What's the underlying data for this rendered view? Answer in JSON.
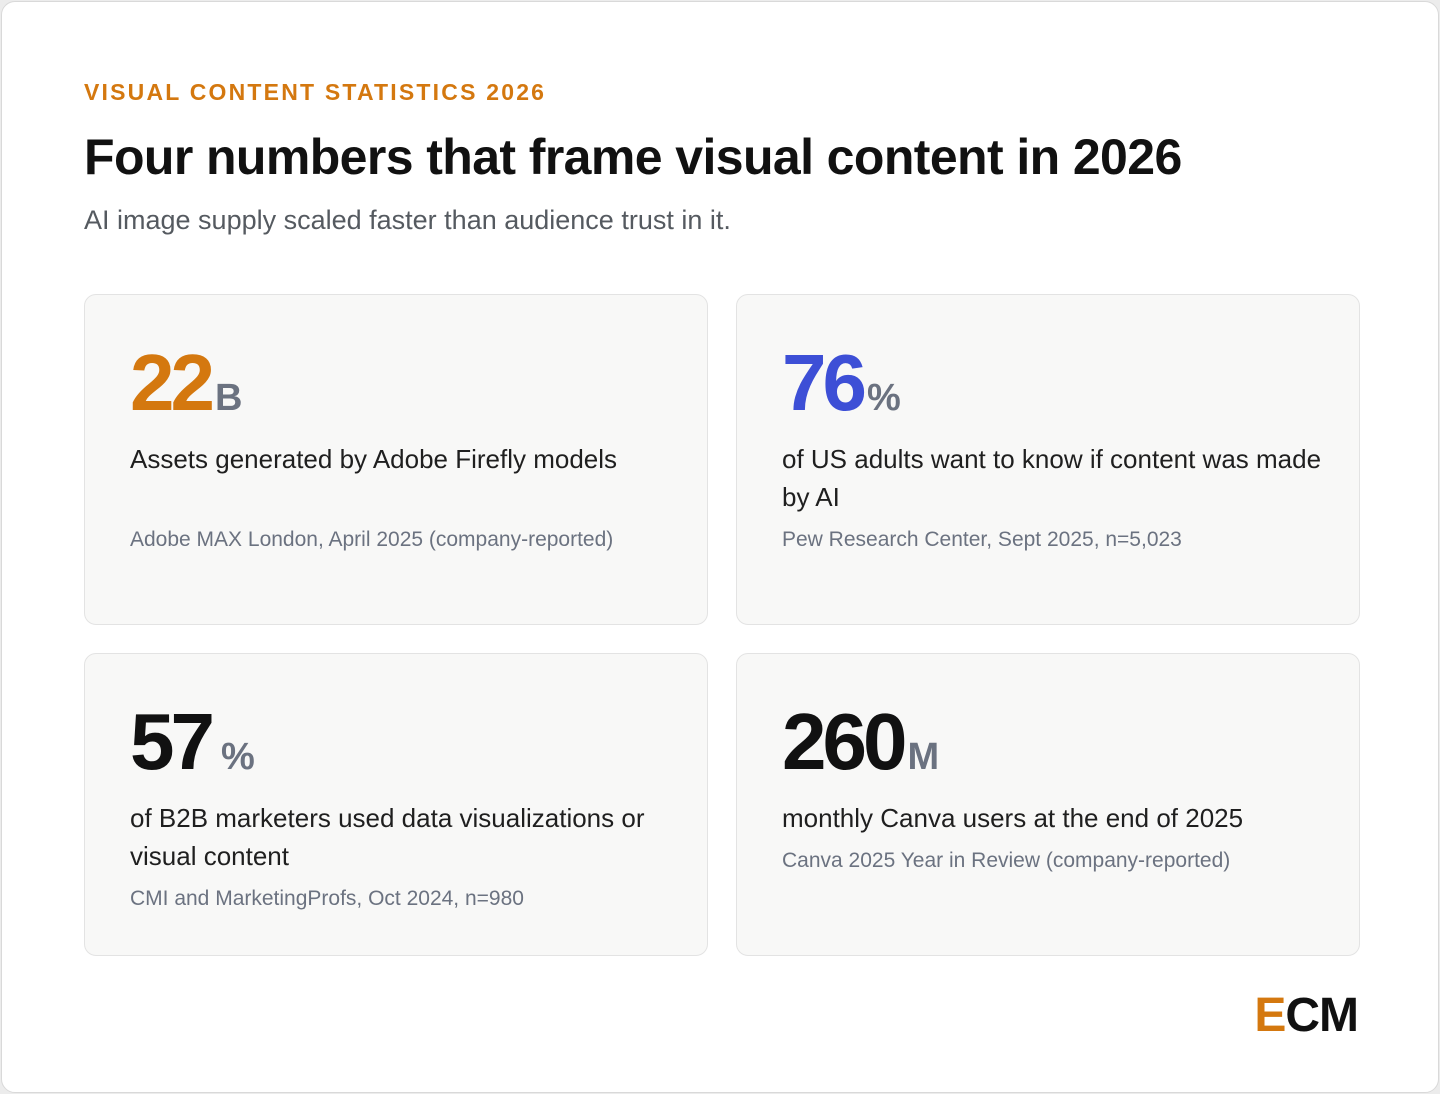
{
  "header": {
    "eyebrow": "VISUAL CONTENT STATISTICS 2026",
    "title": "Four numbers that frame visual content in 2026",
    "subtitle": "AI image supply scaled faster than audience trust in it."
  },
  "cards": [
    {
      "value": "22",
      "unit": "B",
      "value_color": "#d4780f",
      "description": "Assets generated by Adobe Firefly models",
      "source": "Adobe MAX London, April 2025 (company-reported)"
    },
    {
      "value": "76",
      "unit": "%",
      "value_color": "#3d4fd6",
      "description": "of US adults want to know if content was made by AI",
      "source": "Pew Research Center, Sept 2025, n=5,023"
    },
    {
      "value": "57",
      "unit": "%",
      "value_color": "#111111",
      "description": "of B2B marketers used data visualizations or visual content",
      "source": "CMI and MarketingProfs, Oct 2024, n=980"
    },
    {
      "value": "260",
      "unit": "M",
      "value_color": "#111111",
      "description": "monthly Canva users at the end of 2025",
      "source": "Canva 2025 Year in Review (company-reported)"
    }
  ],
  "logo": {
    "first": "E",
    "rest": "CM",
    "first_color": "#d4780f",
    "rest_color": "#111111"
  }
}
